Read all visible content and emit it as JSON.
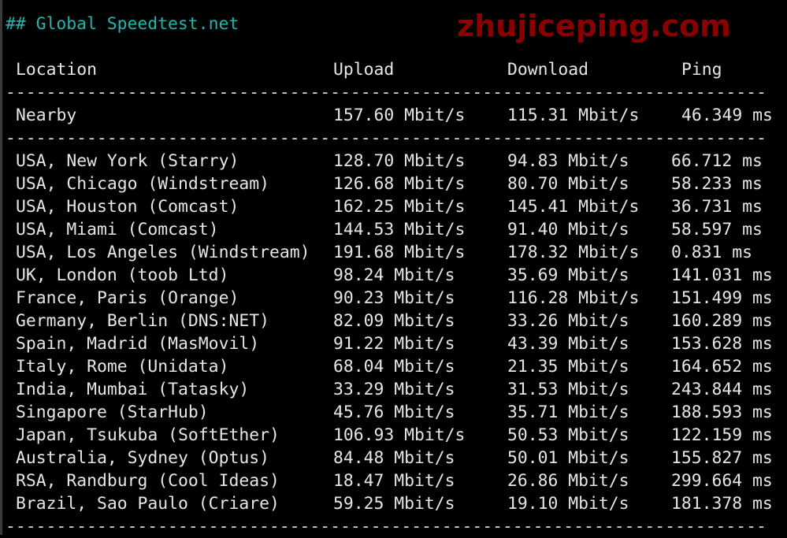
{
  "title": "## Global Speedtest.net",
  "separator": "---------------------------------------------------------------------------",
  "headers": {
    "location": "Location",
    "upload": "Upload",
    "download": "Download",
    "ping": "Ping"
  },
  "nearby": {
    "location": "Nearby",
    "upload": "157.60 Mbit/s",
    "download": "115.31 Mbit/s",
    "ping": "46.349 ms"
  },
  "rows": [
    {
      "location": "USA, New York (Starry)",
      "upload": "128.70 Mbit/s",
      "download": "94.83 Mbit/s",
      "ping": "66.712 ms"
    },
    {
      "location": "USA, Chicago (Windstream)",
      "upload": "126.68 Mbit/s",
      "download": "80.70 Mbit/s",
      "ping": "58.233 ms"
    },
    {
      "location": "USA, Houston (Comcast)",
      "upload": "162.25 Mbit/s",
      "download": "145.41 Mbit/s",
      "ping": "36.731 ms"
    },
    {
      "location": "USA, Miami (Comcast)",
      "upload": "144.53 Mbit/s",
      "download": "91.40 Mbit/s",
      "ping": "58.597 ms"
    },
    {
      "location": "USA, Los Angeles (Windstream)",
      "upload": "191.68 Mbit/s",
      "download": "178.32 Mbit/s",
      "ping": "0.831 ms"
    },
    {
      "location": "UK, London (toob Ltd)",
      "upload": "98.24 Mbit/s",
      "download": "35.69 Mbit/s",
      "ping": "141.031 ms"
    },
    {
      "location": "France, Paris (Orange)",
      "upload": "90.23 Mbit/s",
      "download": "116.28 Mbit/s",
      "ping": "151.499 ms"
    },
    {
      "location": "Germany, Berlin (DNS:NET)",
      "upload": "82.09 Mbit/s",
      "download": "33.26 Mbit/s",
      "ping": "160.289 ms"
    },
    {
      "location": "Spain, Madrid (MasMovil)",
      "upload": "91.22 Mbit/s",
      "download": "43.39 Mbit/s",
      "ping": "153.628 ms"
    },
    {
      "location": "Italy, Rome (Unidata)",
      "upload": "68.04 Mbit/s",
      "download": "21.35 Mbit/s",
      "ping": "164.652 ms"
    },
    {
      "location": "India, Mumbai (Tatasky)",
      "upload": "33.29 Mbit/s",
      "download": "31.53 Mbit/s",
      "ping": "243.844 ms"
    },
    {
      "location": "Singapore (StarHub)",
      "upload": "45.76 Mbit/s",
      "download": "35.71 Mbit/s",
      "ping": "188.593 ms"
    },
    {
      "location": "Japan, Tsukuba (SoftEther)",
      "upload": "106.93 Mbit/s",
      "download": "50.53 Mbit/s",
      "ping": "122.159 ms"
    },
    {
      "location": "Australia, Sydney (Optus)",
      "upload": "84.48 Mbit/s",
      "download": "50.01 Mbit/s",
      "ping": "155.827 ms"
    },
    {
      "location": "RSA, Randburg (Cool Ideas)",
      "upload": "18.47 Mbit/s",
      "download": "26.86 Mbit/s",
      "ping": "299.664 ms"
    },
    {
      "location": "Brazil, Sao Paulo (Criare)",
      "upload": "59.25 Mbit/s",
      "download": "19.10 Mbit/s",
      "ping": "181.378 ms"
    }
  ],
  "watermark": "zhujiceping.com",
  "colors": {
    "background": "#000000",
    "text": "#e6e6e6",
    "title": "#26b3ad",
    "watermark": "#960000"
  }
}
